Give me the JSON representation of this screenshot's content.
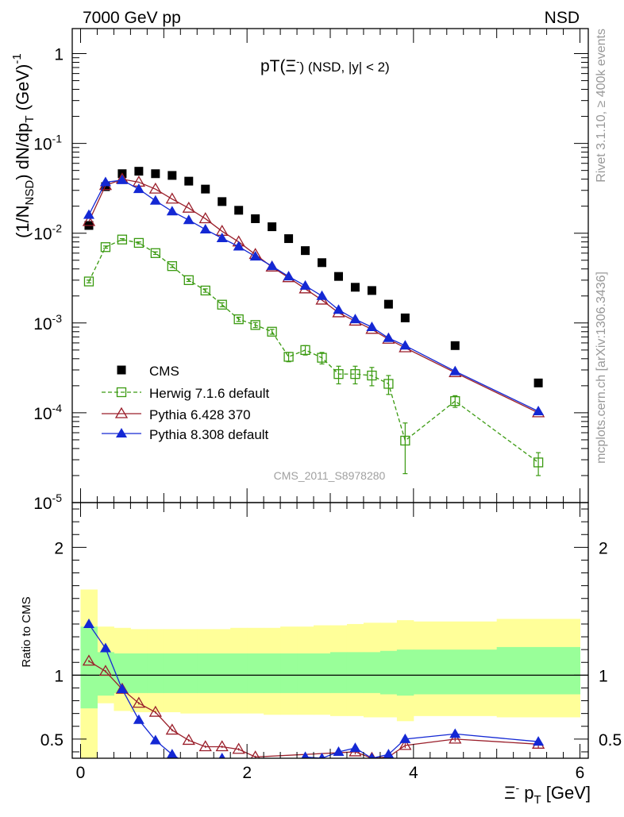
{
  "header": {
    "energy": "7000 GeV pp",
    "process": "NSD",
    "side_rivet": "Rivet 3.1.10, ≥ 400k events",
    "side_mcplots": "mcplots.cern.ch [arXiv:1306.3436]"
  },
  "colors": {
    "cms": "#000000",
    "herwig": "#3a9a10",
    "pythia6": "#9a1e2a",
    "pythia8": "#1428d4",
    "band_inner": "#99ff99",
    "band_outer": "#ffff99"
  },
  "chart_data": [
    {
      "type": "scatter",
      "scale": "log",
      "title": "pT(Ξ⁻) (NSD, |y| < 2)",
      "title_main": "pT(",
      "title_sym": "Ξ",
      "title_sup": "-",
      "title_rest": ") (NSD, |y| < 2)",
      "ylabel": "(1/N_NSD) dN/dp_T (GeV)^-1",
      "ylabel_a": "(1/N",
      "ylabel_sub1": "NSD",
      "ylabel_b": ") dN/dp",
      "ylabel_sub2": "T",
      "ylabel_c": " (GeV)",
      "ylabel_sup": "-1",
      "analysis_tag": "CMS_2011_S8978280",
      "xlim": [
        -0.1,
        6.1
      ],
      "ylim": [
        1e-05,
        1.9
      ],
      "yticks": [
        {
          "value": 1,
          "label": "1"
        },
        {
          "value": 0.1,
          "label": "10",
          "exp": "-1"
        },
        {
          "value": 0.01,
          "label": "10",
          "exp": "-2"
        },
        {
          "value": 0.001,
          "label": "10",
          "exp": "-3"
        },
        {
          "value": 0.0001,
          "label": "10",
          "exp": "-4"
        },
        {
          "value": 1e-05,
          "label": "10",
          "exp": "-5"
        }
      ],
      "legend_position": "bottom-left",
      "series": [
        {
          "name": "CMS",
          "key": "cms",
          "x": [
            0.1,
            0.3,
            0.5,
            0.7,
            0.9,
            1.1,
            1.3,
            1.5,
            1.7,
            1.9,
            2.1,
            2.3,
            2.5,
            2.7,
            2.9,
            3.1,
            3.3,
            3.5,
            3.7,
            3.9,
            4.5,
            5.5
          ],
          "y": [
            0.0122,
            0.033,
            0.046,
            0.049,
            0.046,
            0.044,
            0.038,
            0.031,
            0.0225,
            0.018,
            0.0145,
            0.0118,
            0.0087,
            0.0064,
            0.0047,
            0.0033,
            0.0025,
            0.0023,
            0.00162,
            0.00114,
            0.00056,
            0.000215
          ]
        },
        {
          "name": "Herwig 7.1.6 default",
          "key": "herwig",
          "x": [
            0.1,
            0.3,
            0.5,
            0.7,
            0.9,
            1.1,
            1.3,
            1.5,
            1.7,
            1.9,
            2.1,
            2.3,
            2.5,
            2.7,
            2.9,
            3.1,
            3.3,
            3.5,
            3.7,
            3.9,
            4.5,
            5.5
          ],
          "y": [
            0.0029,
            0.007,
            0.0085,
            0.0078,
            0.006,
            0.0043,
            0.003,
            0.0023,
            0.0016,
            0.0011,
            0.00095,
            0.0008,
            0.00042,
            0.0005,
            0.00041,
            0.00027,
            0.00027,
            0.00026,
            0.00021,
            4.9e-05,
            0.000135,
            2.8e-05
          ],
          "err": [
            0.0001,
            0.0002,
            0.0002,
            0.0002,
            0.0002,
            0.00015,
            0.0001,
            0.0001,
            8e-05,
            6e-05,
            6e-05,
            5e-05,
            5e-05,
            6e-05,
            6e-05,
            6e-05,
            6e-05,
            6e-05,
            5e-05,
            2.8e-05,
            2e-05,
            8e-06
          ]
        },
        {
          "name": "Pythia 6.428 370",
          "key": "pythia6",
          "x": [
            0.1,
            0.3,
            0.5,
            0.7,
            0.9,
            1.1,
            1.3,
            1.5,
            1.7,
            1.9,
            2.1,
            2.3,
            2.5,
            2.7,
            2.9,
            3.1,
            3.3,
            3.5,
            3.7,
            3.9,
            4.5,
            5.5
          ],
          "y": [
            0.0135,
            0.034,
            0.04,
            0.037,
            0.031,
            0.024,
            0.019,
            0.0145,
            0.0105,
            0.008,
            0.0058,
            0.0042,
            0.0032,
            0.0024,
            0.0018,
            0.0013,
            0.00105,
            0.00085,
            0.00066,
            0.00053,
            0.00028,
            0.0001
          ]
        },
        {
          "name": "Pythia 8.308 default",
          "key": "pythia8",
          "x": [
            0.1,
            0.3,
            0.5,
            0.7,
            0.9,
            1.1,
            1.3,
            1.5,
            1.7,
            1.9,
            2.1,
            2.3,
            2.5,
            2.7,
            2.9,
            3.1,
            3.3,
            3.5,
            3.7,
            3.9,
            4.5,
            5.5
          ],
          "y": [
            0.016,
            0.037,
            0.039,
            0.031,
            0.023,
            0.0175,
            0.014,
            0.011,
            0.0088,
            0.0071,
            0.0055,
            0.0043,
            0.0033,
            0.0026,
            0.002,
            0.0014,
            0.0011,
            0.0009,
            0.00068,
            0.00056,
            0.00029,
            0.000104
          ]
        }
      ]
    },
    {
      "type": "line",
      "ylabel": "Ratio to CMS",
      "xlabel": "Ξ⁻ p_T [GeV]",
      "xlabel_sym": "Ξ",
      "xlabel_sup": "-",
      "xlabel_main": " p",
      "xlabel_sub": "T",
      "xlabel_rest": " [GeV]",
      "xlim": [
        -0.1,
        6.1
      ],
      "ylim": [
        0.35,
        2.35
      ],
      "xticks": [
        0,
        2,
        4,
        6
      ],
      "yticks": [
        0.5,
        1,
        2
      ],
      "reference_line": 1,
      "band_edges": [
        0,
        0.2,
        0.4,
        0.6,
        0.8,
        1.0,
        1.2,
        1.4,
        1.6,
        1.8,
        2.0,
        2.2,
        2.4,
        2.6,
        2.8,
        3.0,
        3.2,
        3.4,
        3.6,
        3.8,
        4.0,
        5.0,
        6.0
      ],
      "band_inner": [
        [
          0.74,
          1.38
        ],
        [
          0.84,
          1.18
        ],
        [
          0.86,
          1.17
        ],
        [
          0.86,
          1.17
        ],
        [
          0.86,
          1.17
        ],
        [
          0.86,
          1.17
        ],
        [
          0.86,
          1.17
        ],
        [
          0.86,
          1.17
        ],
        [
          0.86,
          1.17
        ],
        [
          0.86,
          1.17
        ],
        [
          0.86,
          1.17
        ],
        [
          0.86,
          1.17
        ],
        [
          0.86,
          1.17
        ],
        [
          0.86,
          1.17
        ],
        [
          0.86,
          1.17
        ],
        [
          0.86,
          1.18
        ],
        [
          0.86,
          1.18
        ],
        [
          0.86,
          1.18
        ],
        [
          0.85,
          1.19
        ],
        [
          0.84,
          1.2
        ],
        [
          0.85,
          1.2
        ],
        [
          0.85,
          1.22
        ]
      ],
      "band_outer": [
        [
          0.0,
          1.67
        ],
        [
          0.78,
          1.38
        ],
        [
          0.72,
          1.37
        ],
        [
          0.71,
          1.36
        ],
        [
          0.71,
          1.36
        ],
        [
          0.71,
          1.36
        ],
        [
          0.7,
          1.36
        ],
        [
          0.7,
          1.36
        ],
        [
          0.7,
          1.36
        ],
        [
          0.7,
          1.37
        ],
        [
          0.7,
          1.37
        ],
        [
          0.69,
          1.37
        ],
        [
          0.69,
          1.38
        ],
        [
          0.69,
          1.38
        ],
        [
          0.69,
          1.39
        ],
        [
          0.68,
          1.39
        ],
        [
          0.68,
          1.4
        ],
        [
          0.67,
          1.41
        ],
        [
          0.67,
          1.41
        ],
        [
          0.64,
          1.43
        ],
        [
          0.68,
          1.42
        ],
        [
          0.67,
          1.44
        ]
      ],
      "series": [
        {
          "name": "Pythia 6.428 370",
          "key": "pythia6",
          "x": [
            0.1,
            0.3,
            0.5,
            0.7,
            0.9,
            1.1,
            1.3,
            1.5,
            1.7,
            1.9,
            2.1,
            3.3,
            3.5,
            3.7,
            3.9,
            4.5,
            5.5
          ],
          "y": [
            1.11,
            1.03,
            0.89,
            0.78,
            0.71,
            0.57,
            0.49,
            0.44,
            0.44,
            0.42,
            0.36,
            0.4,
            0.35,
            0.36,
            0.45,
            0.5,
            0.46
          ],
          "err": [
            0.01,
            0.01,
            0.01,
            0.01,
            0.01,
            0.01,
            0.01,
            0.01,
            0.01,
            0.01,
            0.01,
            0.02,
            0.02,
            0.02,
            0.02,
            0.02,
            0.03
          ]
        },
        {
          "name": "Pythia 8.308 default",
          "key": "pythia8",
          "x": [
            0.1,
            0.3,
            0.5,
            0.7,
            0.9,
            1.1,
            1.3,
            1.5,
            1.7,
            1.9,
            2.1,
            2.3,
            2.5,
            2.7,
            2.9,
            3.1,
            3.3,
            3.5,
            3.7,
            3.9,
            4.5,
            5.5
          ],
          "y": [
            1.4,
            1.21,
            0.89,
            0.65,
            0.49,
            0.38,
            0.3,
            0.3,
            0.35,
            0.3,
            0.3,
            0.3,
            0.3,
            0.36,
            0.35,
            0.4,
            0.43,
            0.35,
            0.38,
            0.5,
            0.54,
            0.48
          ],
          "err": [
            0.01,
            0.01,
            0.01,
            0.01,
            0.01,
            0.01,
            0.01,
            0.01,
            0.01,
            0.01,
            0.01,
            0.01,
            0.01,
            0.02,
            0.02,
            0.02,
            0.03,
            0.02,
            0.03,
            0.03,
            0.02,
            0.03
          ]
        }
      ]
    }
  ]
}
